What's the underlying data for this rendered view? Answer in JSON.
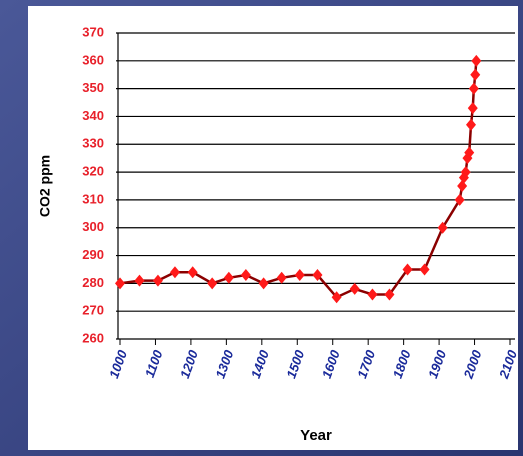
{
  "chart_data": {
    "type": "line",
    "x_label": "Year",
    "y_label": "CO2 ppm",
    "x": [
      1000,
      1055,
      1107,
      1155,
      1205,
      1260,
      1307,
      1355,
      1405,
      1456,
      1507,
      1557,
      1611,
      1662,
      1712,
      1760,
      1811,
      1859,
      1910,
      1958,
      1965,
      1970,
      1975,
      1980,
      1985,
      1990,
      1995,
      1998,
      2002,
      2005
    ],
    "series": [
      {
        "color": "#ff1a1a",
        "line_color": "#8b0000",
        "values": [
          280,
          281,
          281,
          284,
          284,
          280,
          282,
          283,
          280,
          282,
          283,
          283,
          275,
          278,
          276,
          276,
          285,
          285,
          300,
          310,
          315,
          318,
          320,
          325,
          327,
          337,
          343,
          350,
          355,
          360
        ]
      }
    ],
    "xlim": [
      1000,
      2100
    ],
    "xticks": [
      1000,
      1100,
      1200,
      1300,
      1400,
      1500,
      1600,
      1700,
      1800,
      1900,
      2000,
      2100
    ],
    "ylim": [
      260,
      370
    ],
    "yticks": [
      260,
      270,
      280,
      290,
      300,
      310,
      320,
      330,
      340,
      350,
      360,
      370
    ],
    "grid": true,
    "ytick_color": "#e8202a",
    "xtick_color": "#1a2a9a"
  }
}
